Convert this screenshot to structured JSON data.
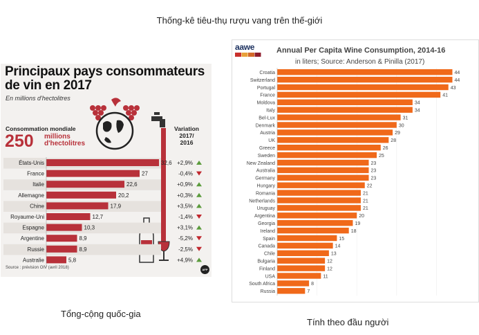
{
  "page": {
    "title": "Thống-kê tiêu-thụ rượu vang trên thế-giới",
    "caption_left": "Tổng-cộng quốc-gia",
    "caption_right": "Tính theo đầu người"
  },
  "colors": {
    "left_bar": "#b8313a",
    "left_up": "#5b9b3c",
    "left_down": "#c0262d",
    "right_bar": "#f0691a"
  },
  "chart_data": [
    {
      "type": "bar",
      "orientation": "horizontal",
      "title": "Principaux pays consommateurs de vin en 2017",
      "subtitle": "En millions d'hectolitres",
      "world_label": "Consommation mondiale",
      "world_value": "250",
      "world_unit": "millions d'hectolitres",
      "variation_header": "Variation 2017/ 2016",
      "source": "Source : prévision OIV (avril 2018)",
      "logo": "AFP",
      "categories": [
        "États-Unis",
        "France",
        "Italie",
        "Allemagne",
        "Chine",
        "Royaume-Uni",
        "Espagne",
        "Argentine",
        "Russie",
        "Australie"
      ],
      "values": [
        32.6,
        27,
        22.6,
        20.2,
        17.9,
        12.7,
        10.3,
        8.9,
        8.9,
        5.8
      ],
      "value_labels": [
        "32,6",
        "27",
        "22,6",
        "20,2",
        "17,9",
        "12,7",
        "10,3",
        "8,9",
        "8,9",
        "5,8"
      ],
      "variation": [
        "+2,9%",
        "-0,4%",
        "+0,9%",
        "+0,3%",
        "+3,5%",
        "-1,4%",
        "+3,1%",
        "-5,2%",
        "-2,5%",
        "+4,9%"
      ],
      "variation_dir": [
        "up",
        "down",
        "up",
        "up",
        "up",
        "down",
        "up",
        "down",
        "down",
        "up"
      ],
      "xlim": [
        0,
        34
      ]
    },
    {
      "type": "bar",
      "orientation": "horizontal",
      "title": "Annual Per Capita Wine Consumption, 2014-16",
      "subtitle": "in liters; Source: Anderson & Pinilla (2017)",
      "logo": "aawe",
      "categories": [
        "Croatia",
        "Switzerland",
        "Portugal",
        "France",
        "Moldova",
        "Italy",
        "Bel-Lux",
        "Denmark",
        "Austria",
        "UK",
        "Greece",
        "Sweden",
        "New Zealand",
        "Australia",
        "Germany",
        "Hungary",
        "Romania",
        "Netherlands",
        "Uruguay",
        "Argentina",
        "Georgia",
        "Ireland",
        "Spain",
        "Canada",
        "Chile",
        "Bulgaria",
        "Finland",
        "USA",
        "South Africa",
        "Russia"
      ],
      "values": [
        44,
        44,
        43,
        41,
        34,
        34,
        31,
        30,
        29,
        28,
        26,
        25,
        23,
        23,
        23,
        22,
        21,
        21,
        21,
        20,
        19,
        18,
        15,
        14,
        13,
        12,
        12,
        11,
        8,
        7
      ],
      "xlim": [
        0,
        46
      ]
    }
  ]
}
